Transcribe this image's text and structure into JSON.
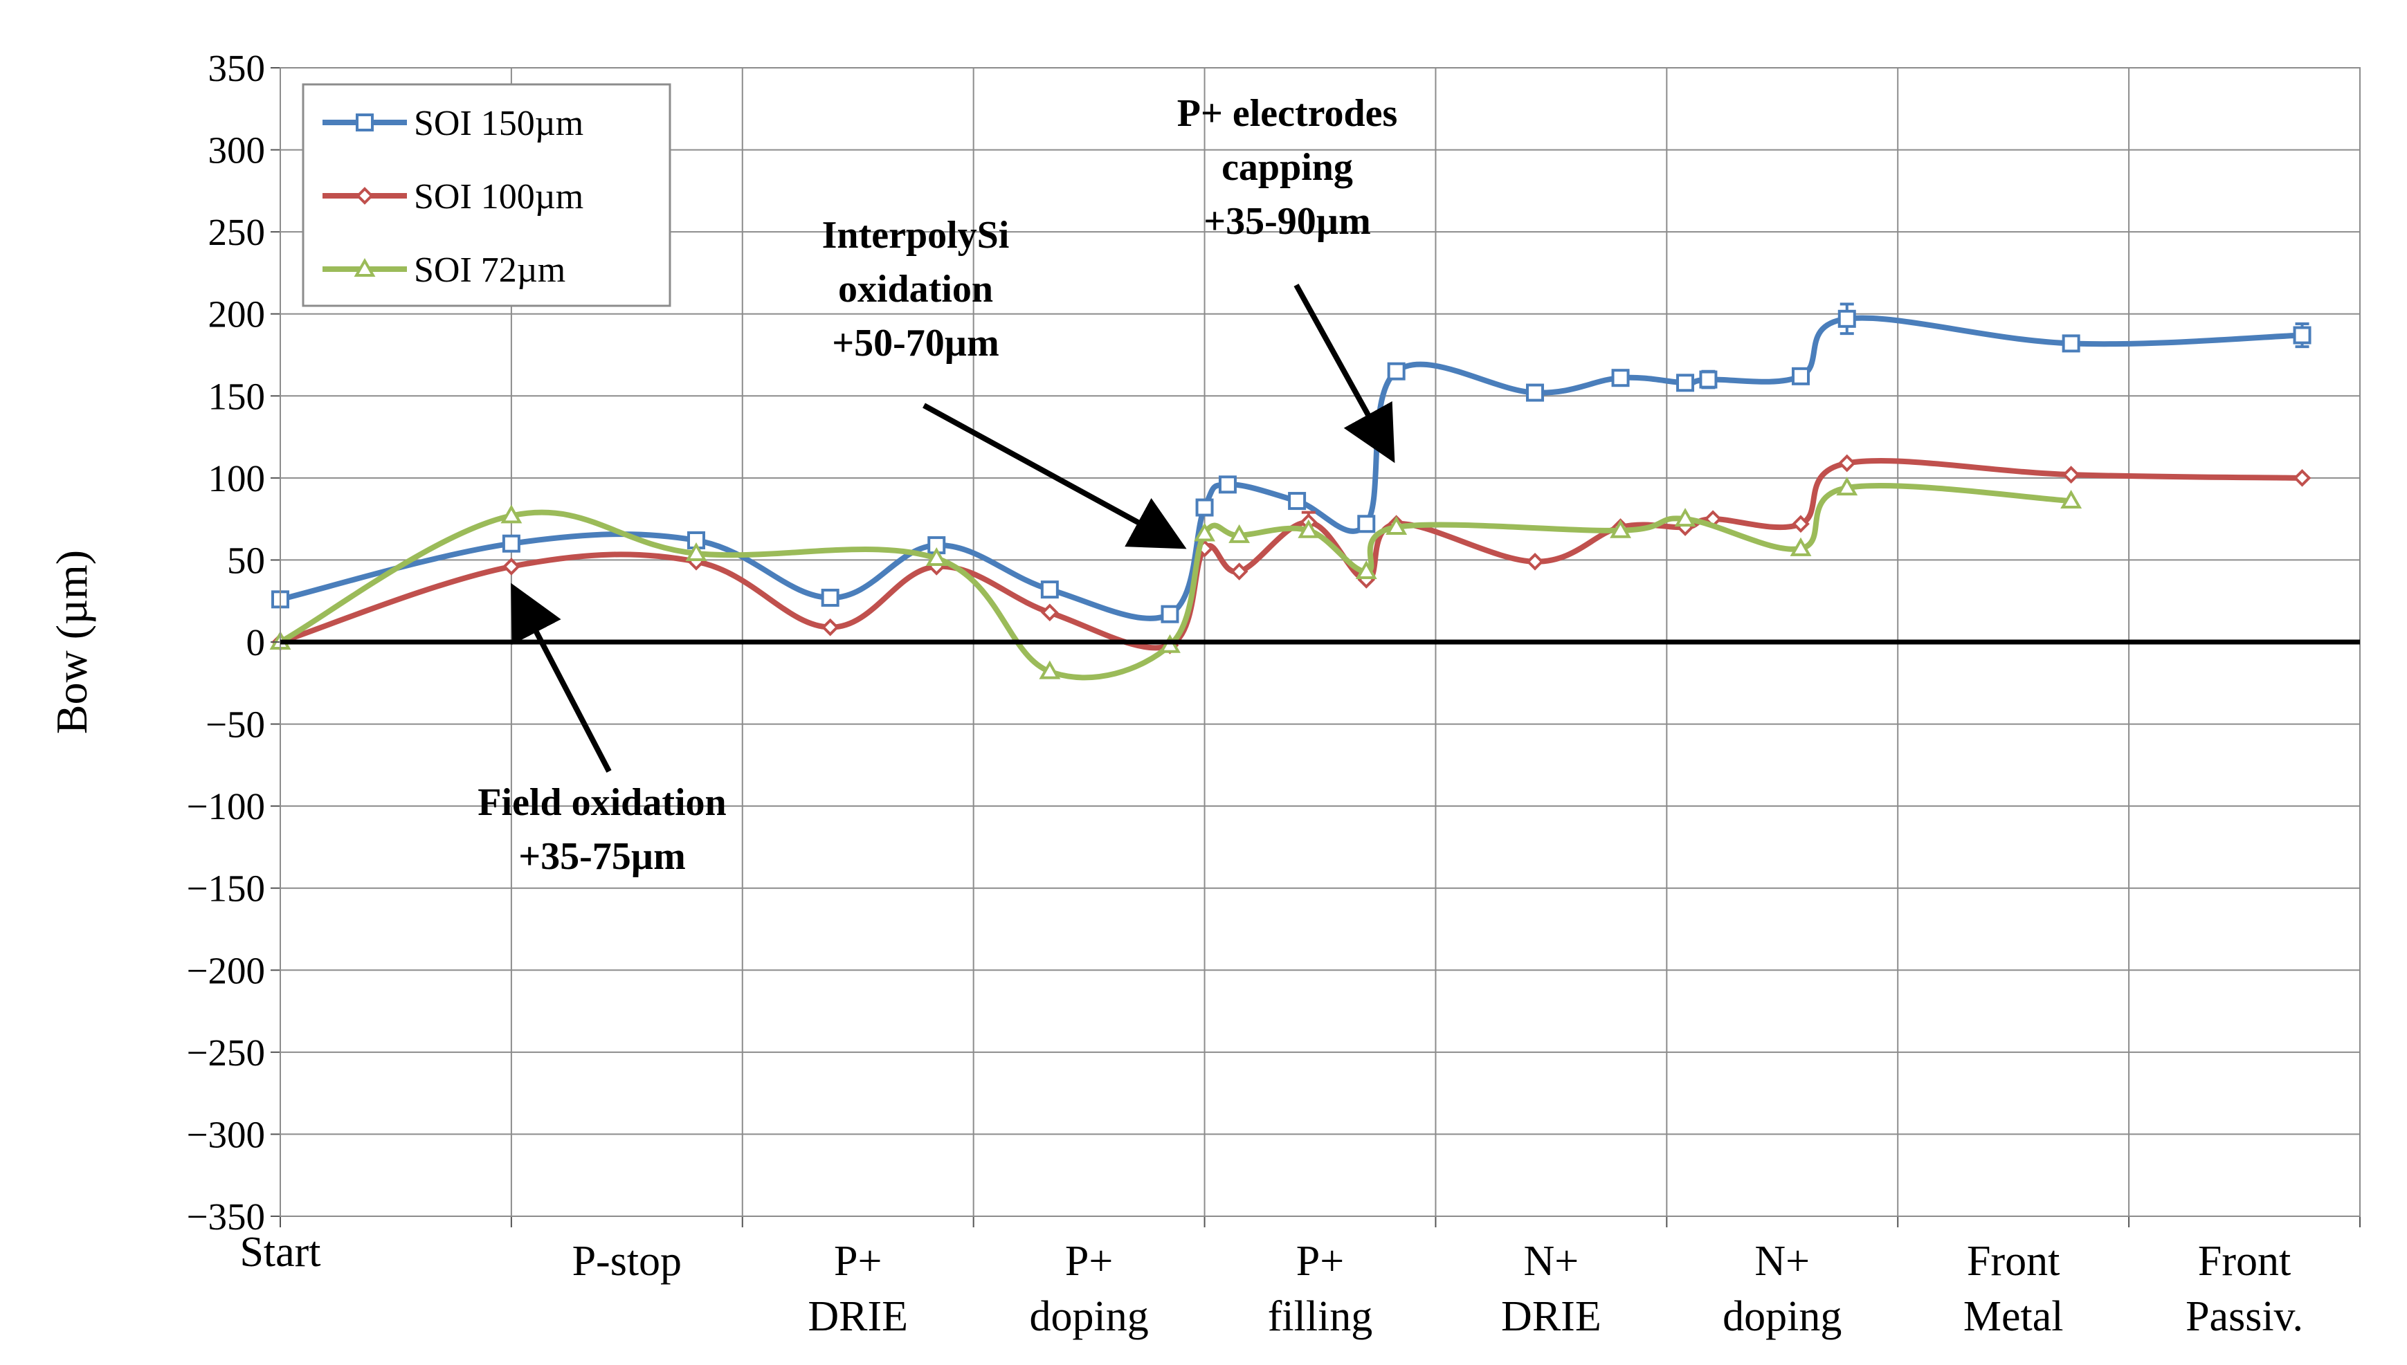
{
  "chart_data": {
    "type": "line",
    "title": "",
    "xlabel": "",
    "ylabel": "Bow (µm)",
    "ylim": [
      -350,
      350
    ],
    "y_ticks": [
      350,
      300,
      250,
      200,
      150,
      100,
      50,
      0,
      -50,
      -100,
      -150,
      -200,
      -250,
      -300,
      -350
    ],
    "y_tick_labels": [
      "350",
      "300",
      "250",
      "200",
      "150",
      "100",
      "50",
      "0",
      "−50",
      "−100",
      "−150",
      "−200",
      "−250",
      "−300",
      "−350"
    ],
    "xlim": [
      0,
      9
    ],
    "grid": true,
    "categories": [
      {
        "lines": [
          "Start"
        ],
        "x": 0,
        "style": "high"
      },
      {
        "lines": [
          "P-stop"
        ],
        "x": 1.5
      },
      {
        "lines": [
          "P+",
          "DRIE"
        ],
        "x": 2.5
      },
      {
        "lines": [
          "P+",
          "doping"
        ],
        "x": 3.5
      },
      {
        "lines": [
          "P+",
          "filling"
        ],
        "x": 4.5
      },
      {
        "lines": [
          "N+",
          "DRIE"
        ],
        "x": 5.5
      },
      {
        "lines": [
          "N+",
          "doping"
        ],
        "x": 6.5
      },
      {
        "lines": [
          "Front",
          "Metal"
        ],
        "x": 7.5
      },
      {
        "lines": [
          "Front",
          "Passiv."
        ],
        "x": 8.5
      }
    ],
    "series": [
      {
        "name": "SOI 150µm",
        "color": "#4a7ebb",
        "marker": "square",
        "x": [
          0,
          1,
          1.8,
          2.38,
          2.84,
          3.33,
          3.85,
          4.0,
          4.1,
          4.4,
          4.7,
          4.83,
          5.43,
          5.8,
          6.08,
          6.18,
          6.58,
          6.78,
          7.75,
          8.75
        ],
        "y": [
          26,
          60,
          62,
          27,
          59,
          32,
          17,
          82,
          96,
          86,
          72,
          165,
          152,
          161,
          158,
          160,
          162,
          197,
          182,
          187
        ],
        "error": [
          0,
          0,
          0,
          0,
          0,
          0,
          0,
          0,
          0,
          0,
          0,
          0,
          4,
          0,
          0,
          5,
          0,
          9,
          0,
          7
        ]
      },
      {
        "name": "SOI 100µm",
        "color": "#c0504d",
        "marker": "diamond",
        "x": [
          0,
          1,
          1.8,
          2.38,
          2.84,
          3.33,
          3.85,
          4.0,
          4.15,
          4.45,
          4.7,
          4.83,
          5.43,
          5.8,
          6.08,
          6.2,
          6.58,
          6.78,
          7.75,
          8.75
        ],
        "y": [
          0,
          46,
          49,
          9,
          46,
          18,
          -2,
          57,
          43,
          73,
          38,
          72,
          49,
          70,
          70,
          75,
          72,
          109,
          102,
          100
        ],
        "error": [
          0,
          0,
          0,
          0,
          0,
          0,
          0,
          0,
          0,
          6,
          0,
          0,
          0,
          0,
          0,
          0,
          0,
          0,
          0,
          0
        ]
      },
      {
        "name": "SOI 72µm",
        "color": "#9bbb59",
        "marker": "triangle",
        "x": [
          0,
          1,
          1.8,
          2.84,
          3.33,
          3.85,
          4.0,
          4.15,
          4.45,
          4.7,
          4.83,
          5.8,
          6.08,
          6.58,
          6.78,
          7.75
        ],
        "y": [
          0,
          77,
          54,
          51,
          -18,
          -2,
          66,
          65,
          68,
          43,
          70,
          68,
          75,
          57,
          94,
          86
        ],
        "error": [
          0,
          0,
          0,
          0,
          0,
          0,
          0,
          0,
          0,
          0,
          0,
          0,
          0,
          0,
          0,
          0
        ]
      }
    ],
    "legend": {
      "position": "top-left",
      "entries": [
        "SOI 150µm",
        "SOI 100µm",
        "SOI 72µm"
      ]
    },
    "annotations": [
      {
        "lines": [
          "P+ electrodes",
          "capping",
          "+35-90µm"
        ],
        "arrow_to": [
          4.8,
          115
        ]
      },
      {
        "lines": [
          "InterpolySi",
          "oxidation",
          "+50-70µm"
        ],
        "arrow_to": [
          3.88,
          60
        ]
      },
      {
        "lines": [
          "Field oxidation",
          "+35-75µm"
        ],
        "arrow_to": [
          1.02,
          30
        ]
      }
    ]
  }
}
